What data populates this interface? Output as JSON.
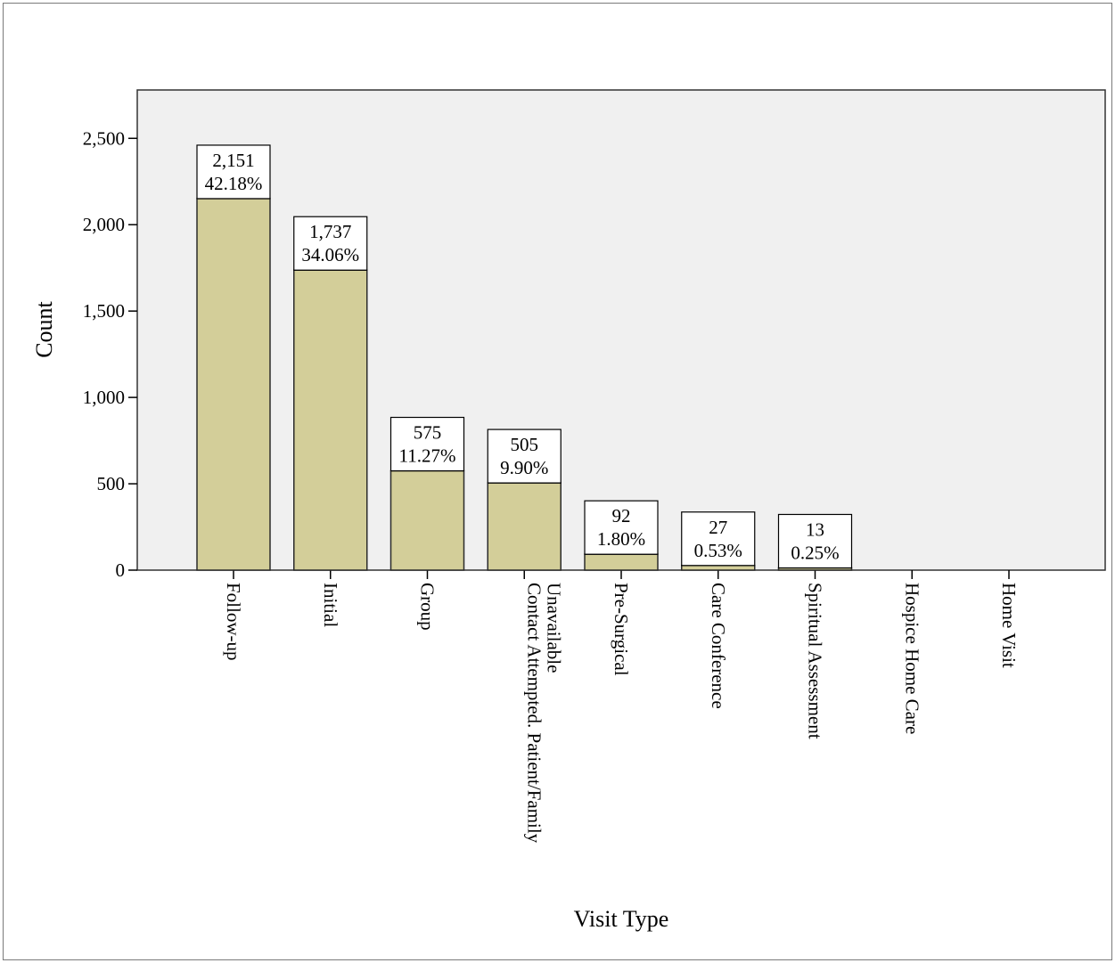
{
  "chart_data": {
    "type": "bar",
    "title": "",
    "xlabel": "Visit Type",
    "ylabel": "Count",
    "ylim": [
      0,
      2780
    ],
    "y_ticks": [
      0,
      500,
      1000,
      1500,
      2000,
      2500
    ],
    "y_tick_labels": [
      "0",
      "500",
      "1,000",
      "1,500",
      "2,000",
      "2,500"
    ],
    "categories": [
      [
        "Follow-up"
      ],
      [
        "Initial"
      ],
      [
        "Group"
      ],
      [
        "Contact Attempted. Patient/Family",
        "Unavailable"
      ],
      [
        "Pre-Surgical"
      ],
      [
        "Care Conference"
      ],
      [
        "Spiritual Assessment"
      ],
      [
        "Hospice Home Care"
      ],
      [
        "Home Visit"
      ]
    ],
    "values": [
      2151,
      1737,
      575,
      505,
      92,
      27,
      13,
      0,
      0
    ],
    "count_labels": [
      "2,151",
      "1,737",
      "575",
      "505",
      "92",
      "27",
      "13"
    ],
    "percent_labels": [
      "42.18%",
      "34.06%",
      "11.27%",
      "9.90%",
      "1.80%",
      "0.53%",
      "0.25%"
    ],
    "colors": {
      "bar_fill": "#d3ce99",
      "bar_stroke": "#2b2b2b",
      "plot_bg": "#f0f0f0",
      "label_box": "#ffffff"
    },
    "grid": false,
    "legend": "none"
  }
}
